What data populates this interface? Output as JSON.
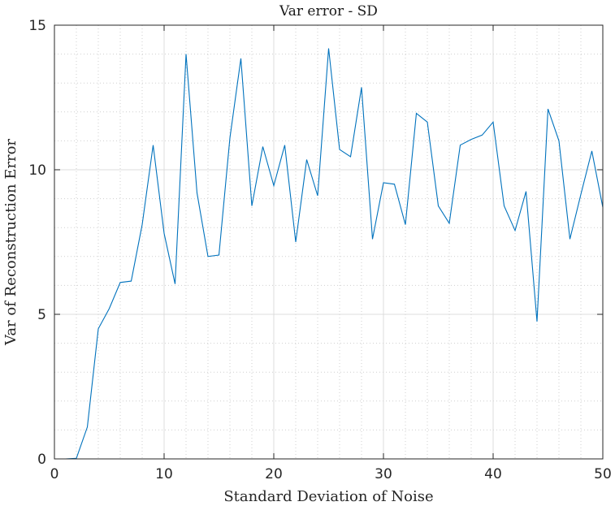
{
  "chart_data": {
    "type": "line",
    "title": "Var error - SD",
    "xlabel": "Standard Deviation of Noise",
    "ylabel": "Var of Reconstruction Error",
    "xlim": [
      0,
      50
    ],
    "ylim": [
      0,
      15
    ],
    "xticks": [
      0,
      10,
      20,
      30,
      40,
      50
    ],
    "yticks": [
      0,
      5,
      10,
      15
    ],
    "x_minor_step": 2,
    "y_minor_step": 1,
    "grid": true,
    "minor_grid": true,
    "series": [
      {
        "color": "#0072BD",
        "x": [
          1,
          2,
          3,
          4,
          5,
          6,
          7,
          8,
          9,
          10,
          11,
          12,
          13,
          14,
          15,
          16,
          17,
          18,
          19,
          20,
          21,
          22,
          23,
          24,
          25,
          26,
          27,
          28,
          29,
          30,
          31,
          32,
          33,
          34,
          35,
          36,
          37,
          38,
          39,
          40,
          41,
          42,
          43,
          44,
          45,
          46,
          47,
          48,
          49,
          50
        ],
        "y": [
          0.0,
          0.02,
          1.1,
          4.5,
          5.2,
          6.1,
          6.15,
          8.1,
          10.85,
          7.8,
          6.05,
          14.0,
          9.2,
          7.0,
          7.05,
          11.1,
          13.85,
          8.75,
          10.8,
          9.45,
          10.85,
          7.5,
          10.35,
          9.1,
          14.2,
          10.7,
          10.45,
          12.85,
          7.6,
          9.55,
          9.5,
          8.1,
          11.95,
          11.65,
          8.75,
          8.15,
          10.85,
          11.05,
          11.2,
          11.65,
          8.75,
          7.9,
          9.25,
          4.75,
          12.1,
          11.0,
          7.6,
          9.15,
          10.65,
          8.7
        ]
      }
    ]
  }
}
